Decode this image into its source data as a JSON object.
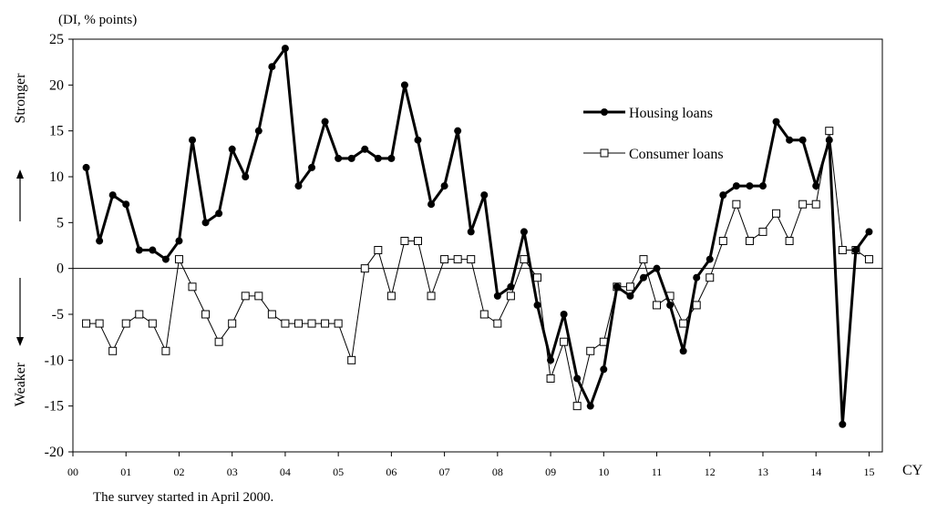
{
  "chart_data": {
    "type": "line",
    "unit_label": "(DI, % points)",
    "direction_up": "Stronger",
    "direction_down": "Weaker",
    "x_axis_label": "CY",
    "x_tick_labels": [
      "00",
      "01",
      "02",
      "03",
      "04",
      "05",
      "06",
      "07",
      "08",
      "09",
      "10",
      "11",
      "12",
      "13",
      "14",
      "15"
    ],
    "ylim": [
      -20,
      25
    ],
    "y_ticks": [
      -20,
      -15,
      -10,
      -5,
      0,
      5,
      10,
      15,
      20,
      25
    ],
    "x_start_year": 2000.0,
    "x_end_year": 2015.25,
    "grid": false,
    "zero_line": true,
    "legend_position": "top-right",
    "series": [
      {
        "name": "Housing loans",
        "style": "bold-filled-circle",
        "color": "#000000",
        "x": [
          2000.25,
          2000.5,
          2000.75,
          2001.0,
          2001.25,
          2001.5,
          2001.75,
          2002.0,
          2002.25,
          2002.5,
          2002.75,
          2003.0,
          2003.25,
          2003.5,
          2003.75,
          2004.0,
          2004.25,
          2004.5,
          2004.75,
          2005.0,
          2005.25,
          2005.5,
          2005.75,
          2006.0,
          2006.25,
          2006.5,
          2006.75,
          2007.0,
          2007.25,
          2007.5,
          2007.75,
          2008.0,
          2008.25,
          2008.5,
          2008.75,
          2009.0,
          2009.25,
          2009.5,
          2009.75,
          2010.0,
          2010.25,
          2010.5,
          2010.75,
          2011.0,
          2011.25,
          2011.5,
          2011.75,
          2012.0,
          2012.25,
          2012.5,
          2012.75,
          2013.0,
          2013.25,
          2013.5,
          2013.75,
          2014.0,
          2014.25,
          2014.5,
          2014.75,
          2015.0
        ],
        "values": [
          11,
          3,
          8,
          7,
          2,
          2,
          1,
          3,
          14,
          5,
          6,
          13,
          10,
          15,
          22,
          24,
          9,
          11,
          16,
          12,
          12,
          13,
          12,
          12,
          20,
          14,
          7,
          9,
          15,
          4,
          8,
          -3,
          -2,
          4,
          -4,
          -10,
          -5,
          -12,
          -15,
          -11,
          -2,
          -3,
          -1,
          0,
          -4,
          -9,
          -1,
          1,
          8,
          9,
          9,
          9,
          16,
          14,
          14,
          9,
          14,
          -17,
          2,
          4
        ]
      },
      {
        "name": "Consumer loans",
        "style": "hollow-square",
        "color": "#000000",
        "x": [
          2000.25,
          2000.5,
          2000.75,
          2001.0,
          2001.25,
          2001.5,
          2001.75,
          2002.0,
          2002.25,
          2002.5,
          2002.75,
          2003.0,
          2003.25,
          2003.5,
          2003.75,
          2004.0,
          2004.25,
          2004.5,
          2004.75,
          2005.0,
          2005.25,
          2005.5,
          2005.75,
          2006.0,
          2006.25,
          2006.5,
          2006.75,
          2007.0,
          2007.25,
          2007.5,
          2007.75,
          2008.0,
          2008.25,
          2008.5,
          2008.75,
          2009.0,
          2009.25,
          2009.5,
          2009.75,
          2010.0,
          2010.25,
          2010.5,
          2010.75,
          2011.0,
          2011.25,
          2011.5,
          2011.75,
          2012.0,
          2012.25,
          2012.5,
          2012.75,
          2013.0,
          2013.25,
          2013.5,
          2013.75,
          2014.0,
          2014.25,
          2014.5,
          2014.75,
          2015.0
        ],
        "values": [
          -6,
          -6,
          -9,
          -6,
          -5,
          -6,
          -9,
          1,
          -2,
          -5,
          -8,
          -6,
          -3,
          -3,
          -5,
          -6,
          -6,
          -6,
          -6,
          -6,
          -10,
          0,
          2,
          -3,
          3,
          3,
          -3,
          1,
          1,
          1,
          -5,
          -6,
          -3,
          1,
          -1,
          -12,
          -8,
          -15,
          -9,
          -8,
          -2,
          -2,
          1,
          -4,
          -3,
          -6,
          -4,
          -1,
          3,
          7,
          3,
          4,
          6,
          3,
          7,
          7,
          15,
          2,
          2,
          1
        ]
      }
    ],
    "note": "The survey started in April 2000."
  }
}
